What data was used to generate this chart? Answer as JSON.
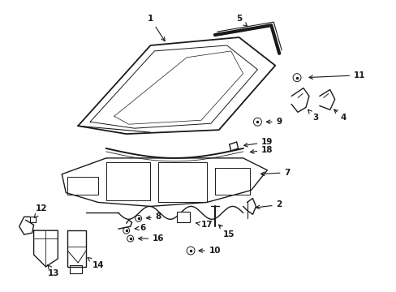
{
  "background_color": "#ffffff",
  "line_color": "#1a1a1a",
  "lw": 1.0,
  "figsize": [
    4.89,
    3.6
  ],
  "dpi": 100
}
